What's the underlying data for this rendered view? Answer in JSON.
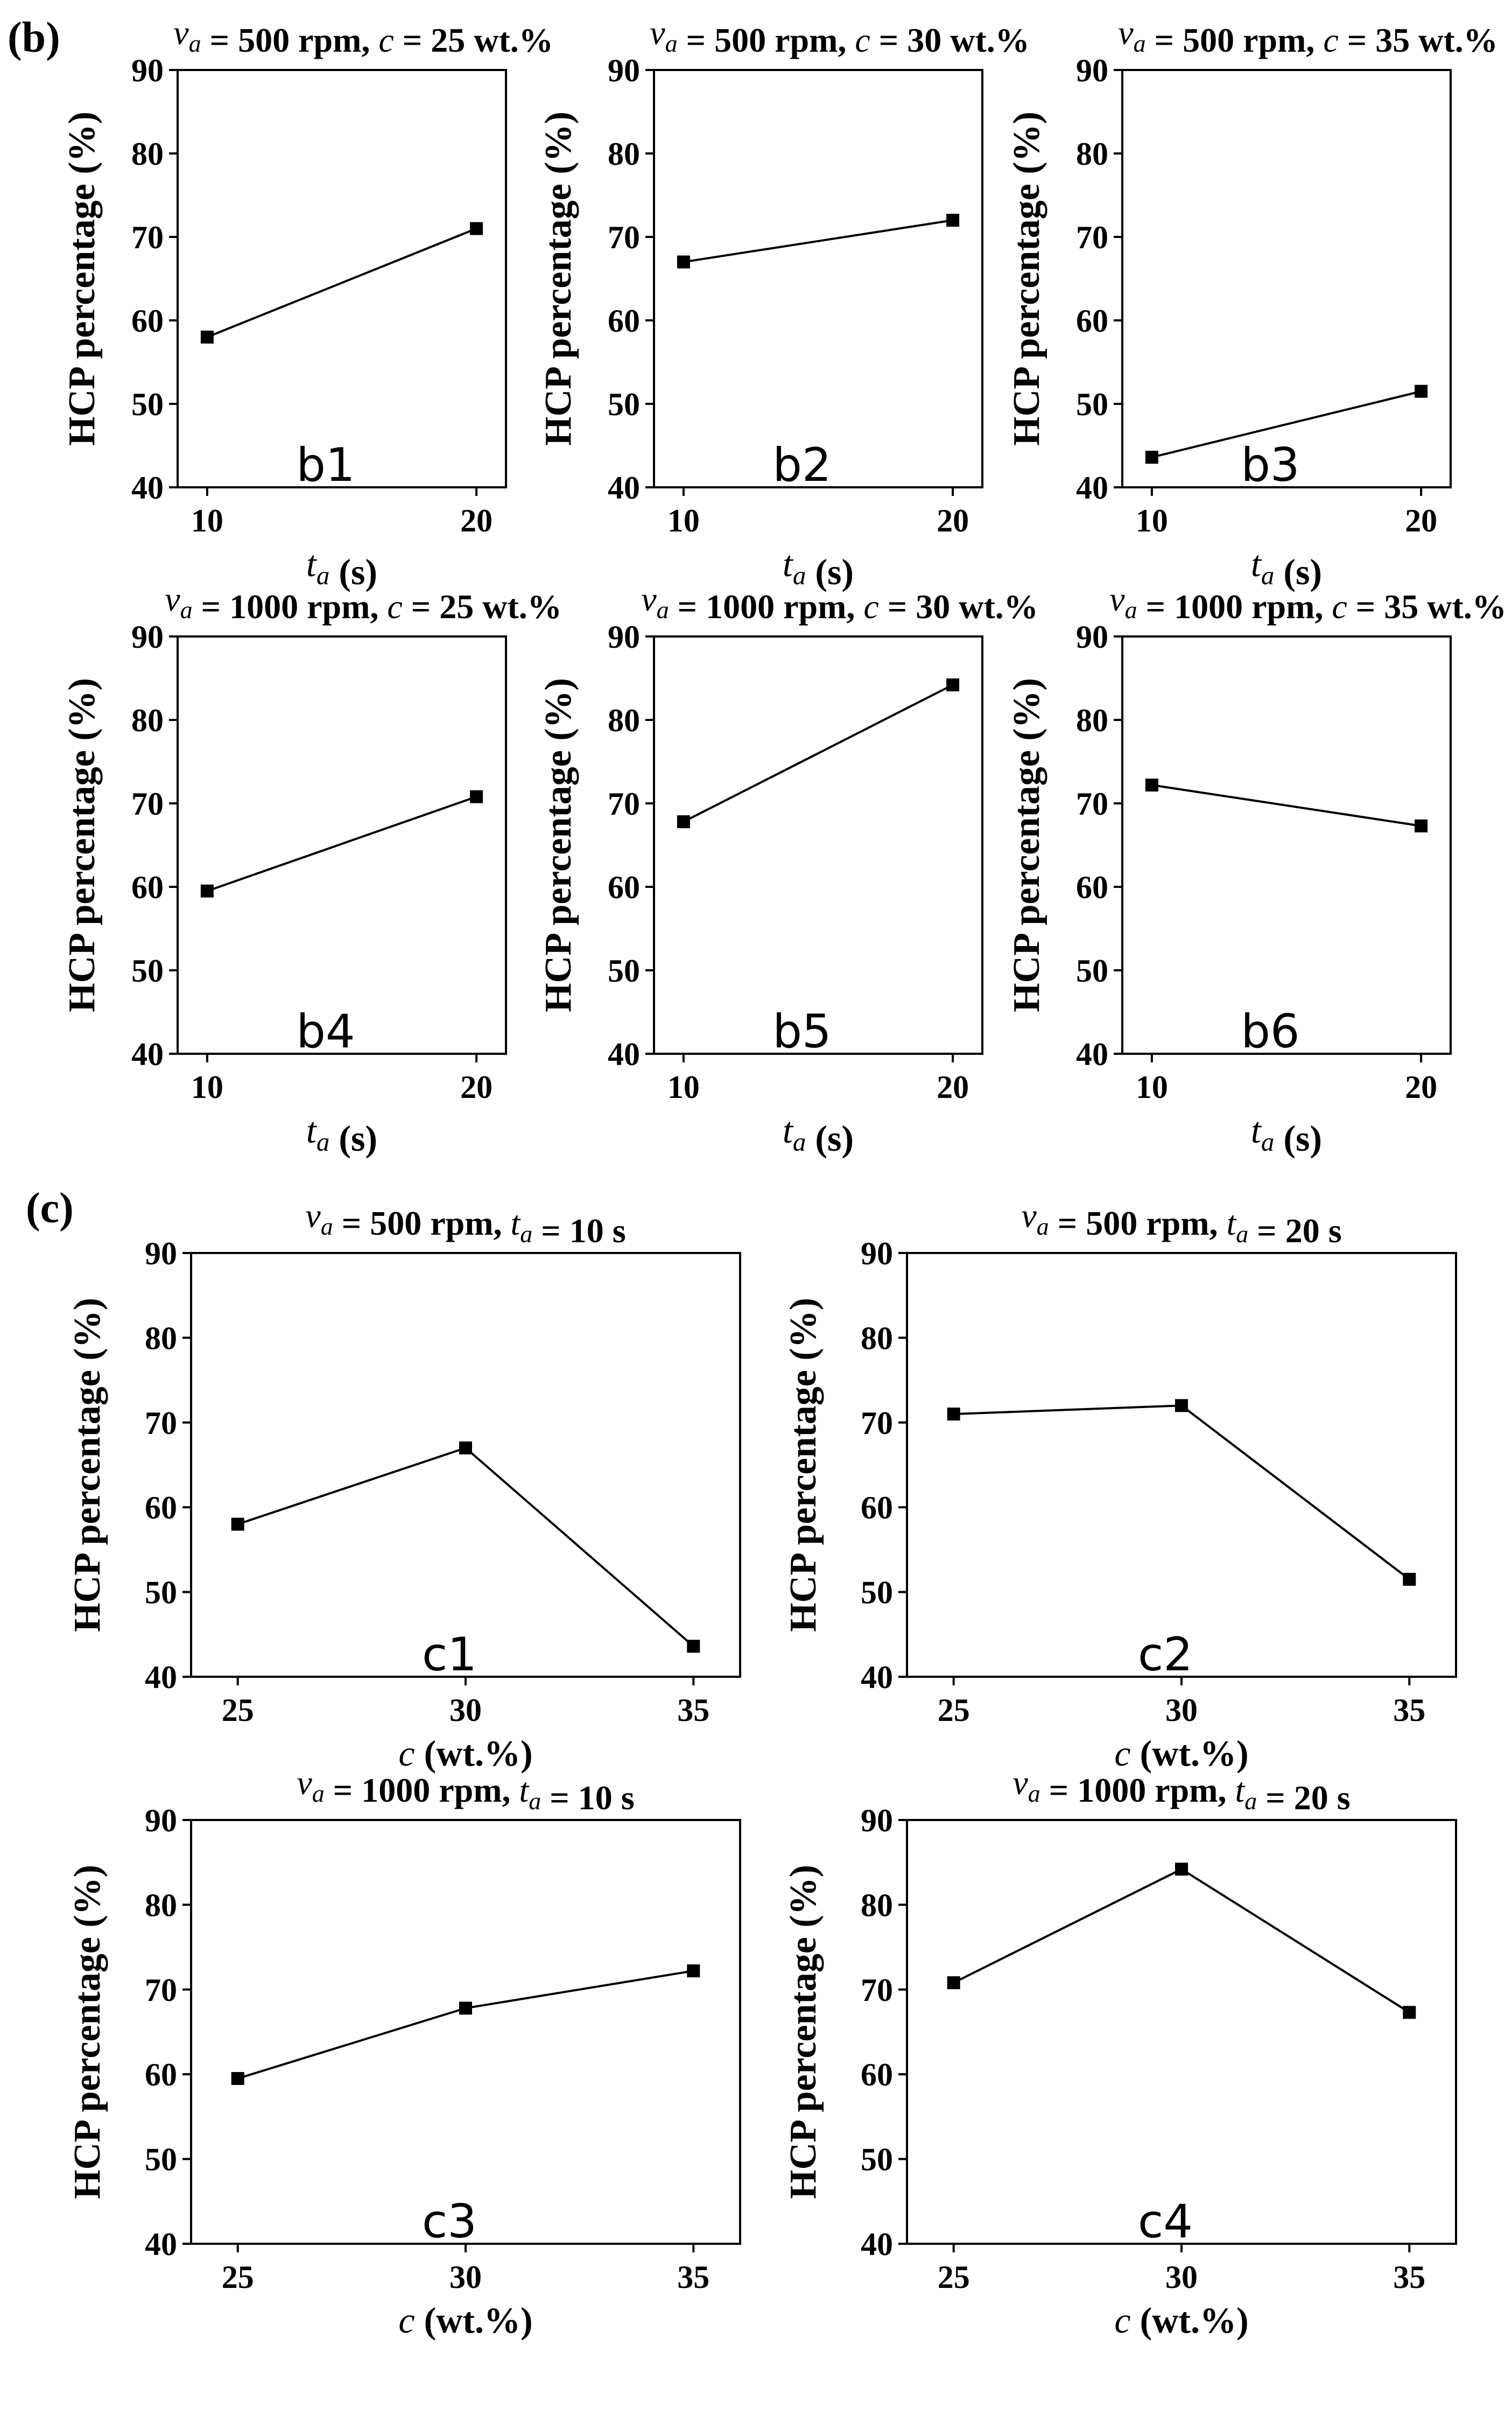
{
  "sections": [
    {
      "label": "(b)"
    },
    {
      "label": "(c)"
    }
  ],
  "chart_data": [
    {
      "id": "b1",
      "type": "line",
      "panel_label": "b1",
      "title": {
        "var": "va",
        "pre": " = 500 rpm, ",
        "var2": "c",
        "post": " = 25 wt.%"
      },
      "x": [
        10,
        20
      ],
      "values": [
        58,
        71
      ],
      "xticks": [
        10,
        20
      ],
      "xlabel": {
        "var": "ta",
        "post": " (s)"
      },
      "ylabel": "HCP percentage (%)",
      "ylim": [
        40,
        90
      ],
      "yticks": [
        40,
        50,
        60,
        70,
        80,
        90
      ]
    },
    {
      "id": "b2",
      "type": "line",
      "panel_label": "b2",
      "title": {
        "var": "va",
        "pre": " = 500 rpm, ",
        "var2": "c",
        "post": " = 30 wt.%"
      },
      "x": [
        10,
        20
      ],
      "values": [
        67,
        72
      ],
      "xticks": [
        10,
        20
      ],
      "xlabel": {
        "var": "ta",
        "post": " (s)"
      },
      "ylabel": "HCP percentage (%)",
      "ylim": [
        40,
        90
      ],
      "yticks": [
        40,
        50,
        60,
        70,
        80,
        90
      ]
    },
    {
      "id": "b3",
      "type": "line",
      "panel_label": "b3",
      "title": {
        "var": "va",
        "pre": " = 500 rpm, ",
        "var2": "c",
        "post": " = 35 wt.%"
      },
      "x": [
        10,
        20
      ],
      "values": [
        43.6,
        51.5
      ],
      "xticks": [
        10,
        20
      ],
      "xlabel": {
        "var": "ta",
        "post": " (s)"
      },
      "ylabel": "HCP percentage (%)",
      "ylim": [
        40,
        90
      ],
      "yticks": [
        40,
        50,
        60,
        70,
        80,
        90
      ]
    },
    {
      "id": "b4",
      "type": "line",
      "panel_label": "b4",
      "title": {
        "var": "va",
        "pre": " = 1000 rpm, ",
        "var2": "c",
        "post": " = 25 wt.%"
      },
      "x": [
        10,
        20
      ],
      "values": [
        59.5,
        70.8
      ],
      "xticks": [
        10,
        20
      ],
      "xlabel": {
        "var": "ta",
        "post": " (s)"
      },
      "ylabel": "HCP percentage (%)",
      "ylim": [
        40,
        90
      ],
      "yticks": [
        40,
        50,
        60,
        70,
        80,
        90
      ]
    },
    {
      "id": "b5",
      "type": "line",
      "panel_label": "b5",
      "title": {
        "var": "va",
        "pre": " = 1000 rpm, ",
        "var2": "c",
        "post": " = 30 wt.%"
      },
      "x": [
        10,
        20
      ],
      "values": [
        67.8,
        84.2
      ],
      "xticks": [
        10,
        20
      ],
      "xlabel": {
        "var": "ta",
        "post": " (s)"
      },
      "ylabel": "HCP percentage (%)",
      "ylim": [
        40,
        90
      ],
      "yticks": [
        40,
        50,
        60,
        70,
        80,
        90
      ]
    },
    {
      "id": "b6",
      "type": "line",
      "panel_label": "b6",
      "title": {
        "var": "va",
        "pre": " = 1000 rpm, ",
        "var2": "c",
        "post": " = 35 wt.%"
      },
      "x": [
        10,
        20
      ],
      "values": [
        72.2,
        67.3
      ],
      "xticks": [
        10,
        20
      ],
      "xlabel": {
        "var": "ta",
        "post": " (s)"
      },
      "ylabel": "HCP percentage (%)",
      "ylim": [
        40,
        90
      ],
      "yticks": [
        40,
        50,
        60,
        70,
        80,
        90
      ]
    },
    {
      "id": "c1",
      "type": "line",
      "panel_label": "c1",
      "title": {
        "var": "va",
        "pre": " = 500 rpm, ",
        "var2": "ta",
        "post": " = 10 s"
      },
      "x": [
        25,
        30,
        35
      ],
      "values": [
        58,
        67,
        43.6
      ],
      "xticks": [
        25,
        30,
        35
      ],
      "xlabel": {
        "var": "c",
        "post": " (wt.%)"
      },
      "ylabel": "HCP percentage (%)",
      "ylim": [
        40,
        90
      ],
      "yticks": [
        40,
        50,
        60,
        70,
        80,
        90
      ]
    },
    {
      "id": "c2",
      "type": "line",
      "panel_label": "c2",
      "title": {
        "var": "va",
        "pre": " = 500 rpm, ",
        "var2": "ta",
        "post": " = 20 s"
      },
      "x": [
        25,
        30,
        35
      ],
      "values": [
        71,
        72,
        51.5
      ],
      "xticks": [
        25,
        30,
        35
      ],
      "xlabel": {
        "var": "c",
        "post": " (wt.%)"
      },
      "ylabel": "HCP percentage (%)",
      "ylim": [
        40,
        90
      ],
      "yticks": [
        40,
        50,
        60,
        70,
        80,
        90
      ]
    },
    {
      "id": "c3",
      "type": "line",
      "panel_label": "c3",
      "title": {
        "var": "va",
        "pre": " = 1000 rpm, ",
        "var2": "ta",
        "post": " = 10 s"
      },
      "x": [
        25,
        30,
        35
      ],
      "values": [
        59.5,
        67.8,
        72.2
      ],
      "xticks": [
        25,
        30,
        35
      ],
      "xlabel": {
        "var": "c",
        "post": " (wt.%)"
      },
      "ylabel": "HCP percentage (%)",
      "ylim": [
        40,
        90
      ],
      "yticks": [
        40,
        50,
        60,
        70,
        80,
        90
      ]
    },
    {
      "id": "c4",
      "type": "line",
      "panel_label": "c4",
      "title": {
        "var": "va",
        "pre": " = 1000 rpm, ",
        "var2": "ta",
        "post": " = 20 s"
      },
      "x": [
        25,
        30,
        35
      ],
      "values": [
        70.8,
        84.2,
        67.3
      ],
      "xticks": [
        25,
        30,
        35
      ],
      "xlabel": {
        "var": "c",
        "post": " (wt.%)"
      },
      "ylabel": "HCP percentage (%)",
      "ylim": [
        40,
        90
      ],
      "yticks": [
        40,
        50,
        60,
        70,
        80,
        90
      ]
    }
  ]
}
